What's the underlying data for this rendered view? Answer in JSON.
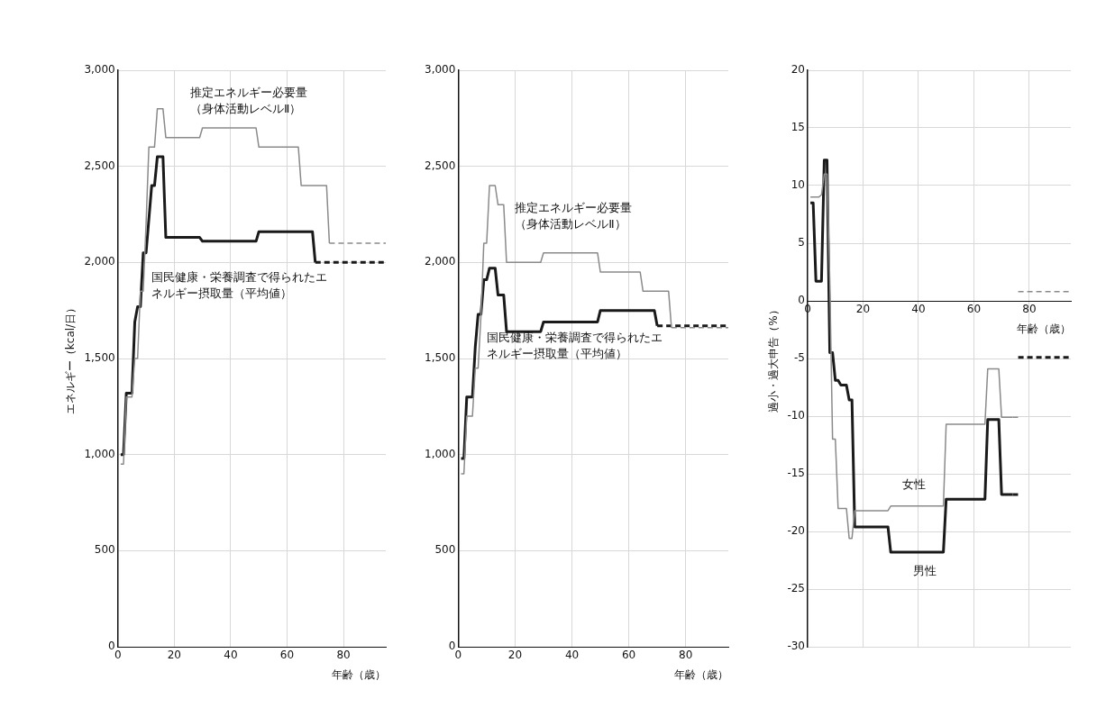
{
  "chart_data": [
    {
      "type": "line",
      "xlabel": "年齢（歳）",
      "ylabel": "エネルギー（kcal/日）",
      "xlim": [
        0,
        95
      ],
      "xticks": [
        0,
        20,
        40,
        60,
        80
      ],
      "ylim": [
        0,
        3000
      ],
      "yticks": [
        0,
        500,
        {
          "value": 1000,
          "label": "1,000"
        },
        {
          "value": 1500,
          "label": "1,500"
        },
        {
          "value": 2000,
          "label": "2,000"
        },
        {
          "value": 2500,
          "label": "2,500"
        },
        {
          "value": 3000,
          "label": "3,000"
        }
      ],
      "grid": true,
      "marker": "none",
      "series": [
        {
          "name": "推定エネルギー必要量（身体活動レベルⅡ）",
          "color": "#8a8a8a",
          "x": [
            1,
            2,
            3,
            5,
            6,
            7,
            8,
            9,
            10,
            11,
            13,
            14,
            16,
            17,
            29,
            30,
            49,
            50,
            64,
            65,
            74,
            75
          ],
          "values": [
            950,
            950,
            1300,
            1300,
            1500,
            1500,
            1850,
            1850,
            2200,
            2600,
            2600,
            2800,
            2800,
            2650,
            2650,
            2700,
            2700,
            2600,
            2600,
            2400,
            2400,
            2100
          ]
        },
        {
          "color": "#8a8a8a",
          "line_style": "dashed",
          "x": [
            75,
            95
          ],
          "values": [
            2100,
            2100
          ]
        },
        {
          "name": "国民健康・栄養調査で得られたエネルギー摂取量（平均値）",
          "color": "#1a1a1a",
          "x": [
            1,
            2,
            3,
            5,
            6,
            7,
            8,
            9,
            10,
            12,
            13,
            14,
            16,
            17,
            29,
            30,
            49,
            50,
            69,
            70
          ],
          "values": [
            1000,
            1000,
            1320,
            1320,
            1690,
            1770,
            1770,
            2050,
            2050,
            2400,
            2400,
            2550,
            2550,
            2130,
            2130,
            2110,
            2110,
            2160,
            2160,
            2000
          ]
        },
        {
          "color": "#1a1a1a",
          "line_style": "dashed",
          "x": [
            70,
            95
          ],
          "values": [
            2000,
            2000
          ]
        }
      ]
    },
    {
      "type": "line",
      "xlabel": "年齢（歳）",
      "xlim": [
        0,
        95
      ],
      "xticks": [
        0,
        20,
        40,
        60,
        80
      ],
      "ylim": [
        0,
        3000
      ],
      "yticks": [
        0,
        500,
        {
          "value": 1000,
          "label": "1,000"
        },
        {
          "value": 1500,
          "label": "1,500"
        },
        {
          "value": 2000,
          "label": "2,000"
        },
        {
          "value": 2500,
          "label": "2,500"
        },
        {
          "value": 3000,
          "label": "3,000"
        }
      ],
      "grid": true,
      "marker": "none",
      "series": [
        {
          "name": "推定エネルギー必要量（身体活動レベルⅡ）",
          "color": "#8a8a8a",
          "x": [
            1,
            2,
            3,
            5,
            6,
            7,
            8,
            9,
            10,
            11,
            13,
            14,
            16,
            17,
            29,
            30,
            49,
            50,
            64,
            65,
            74,
            75
          ],
          "values": [
            900,
            900,
            1200,
            1200,
            1450,
            1450,
            1720,
            2100,
            2100,
            2400,
            2400,
            2300,
            2300,
            2000,
            2000,
            2050,
            2050,
            1950,
            1950,
            1850,
            1850,
            1660
          ]
        },
        {
          "color": "#8a8a8a",
          "line_style": "dashed",
          "x": [
            75,
            95
          ],
          "values": [
            1660,
            1660
          ]
        },
        {
          "name": "国民健康・栄養調査で得られたエネルギー摂取量（平均値）",
          "color": "#1a1a1a",
          "x": [
            1,
            2,
            3,
            5,
            6,
            7,
            8,
            9,
            10,
            11,
            13,
            14,
            16,
            17,
            29,
            30,
            49,
            50,
            69,
            70
          ],
          "values": [
            980,
            980,
            1300,
            1300,
            1560,
            1730,
            1730,
            1910,
            1910,
            1970,
            1970,
            1830,
            1830,
            1640,
            1640,
            1690,
            1690,
            1750,
            1750,
            1670
          ]
        },
        {
          "color": "#1a1a1a",
          "line_style": "dashed",
          "x": [
            70,
            95
          ],
          "values": [
            1670,
            1670
          ]
        }
      ]
    },
    {
      "type": "line",
      "xlabel": "年齢（歳）",
      "ylabel": "過小・過大申告（%）",
      "xlim": [
        0,
        95
      ],
      "xticks": [
        0,
        20,
        40,
        60,
        80
      ],
      "ylim": [
        -30,
        20
      ],
      "yticks": [
        -30,
        -25,
        -20,
        -15,
        -10,
        -5,
        0,
        5,
        10,
        15,
        20
      ],
      "grid": true,
      "marker": "none",
      "series": [
        {
          "name": "女性",
          "color": "#8a8a8a",
          "x": [
            1,
            4,
            5,
            6,
            7,
            8,
            9,
            10,
            11,
            14,
            15,
            16,
            17,
            29,
            30,
            49,
            50,
            64,
            65,
            69,
            70,
            74
          ],
          "values": [
            9,
            9,
            9.2,
            11,
            11,
            1.7,
            -12,
            -12,
            -18,
            -18,
            -20.6,
            -20.6,
            -18.2,
            -18.2,
            -17.8,
            -17.8,
            -10.7,
            -10.7,
            -5.9,
            -5.9,
            -10.1,
            -10.1
          ]
        },
        {
          "color": "#8a8a8a",
          "line_style": "dashed",
          "x": [
            74,
            77
          ],
          "values": [
            -10.1,
            -10.1
          ]
        },
        {
          "color": "#8a8a8a",
          "line_style": "dashed",
          "x": [
            76,
            95
          ],
          "values": [
            0.8,
            0.8
          ]
        },
        {
          "name": "男性",
          "color": "#1a1a1a",
          "x": [
            1,
            2,
            3,
            5,
            6,
            7,
            8,
            9,
            10,
            11,
            12,
            14,
            15,
            16,
            17,
            29,
            30,
            49,
            50,
            64,
            65,
            69,
            70,
            74
          ],
          "values": [
            8.5,
            8.5,
            1.7,
            1.7,
            12.2,
            12.2,
            -4.5,
            -4.5,
            -6.9,
            -6.9,
            -7.3,
            -7.3,
            -8.6,
            -8.6,
            -19.6,
            -19.6,
            -21.8,
            -21.8,
            -17.2,
            -17.2,
            -10.3,
            -10.3,
            -16.8,
            -16.8
          ]
        },
        {
          "color": "#1a1a1a",
          "line_style": "dashed",
          "x": [
            74,
            77
          ],
          "values": [
            -16.8,
            -16.8
          ]
        },
        {
          "color": "#1a1a1a",
          "line_style": "dashed",
          "x": [
            76,
            95
          ],
          "values": [
            -4.9,
            -4.9
          ]
        }
      ]
    }
  ]
}
